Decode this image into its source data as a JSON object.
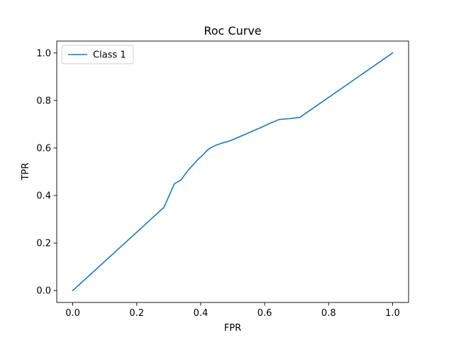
{
  "chart_data": {
    "type": "line",
    "title": "Roc Curve",
    "xlabel": "FPR",
    "ylabel": "TPR",
    "xlim": [
      -0.05,
      1.05
    ],
    "ylim": [
      -0.05,
      1.05
    ],
    "xticks": [
      0.0,
      0.2,
      0.4,
      0.6,
      0.8,
      1.0
    ],
    "yticks": [
      0.0,
      0.2,
      0.4,
      0.6,
      0.8,
      1.0
    ],
    "xtick_labels": [
      "0.0",
      "0.2",
      "0.4",
      "0.6",
      "0.8",
      "1.0"
    ],
    "ytick_labels": [
      "0.0",
      "0.2",
      "0.4",
      "0.6",
      "0.8",
      "1.0"
    ],
    "grid": false,
    "legend_position": "top-left",
    "series": [
      {
        "name": "Class 1",
        "color": "#1f77b4",
        "x": [
          0.0,
          0.285,
          0.318,
          0.338,
          0.36,
          0.39,
          0.41,
          0.42,
          0.43,
          0.45,
          0.47,
          0.485,
          0.5,
          0.54,
          0.57,
          0.59,
          0.61,
          0.645,
          0.68,
          0.71,
          1.0
        ],
        "y": [
          0.0,
          0.35,
          0.45,
          0.465,
          0.505,
          0.55,
          0.575,
          0.59,
          0.6,
          0.613,
          0.622,
          0.627,
          0.635,
          0.658,
          0.676,
          0.687,
          0.7,
          0.72,
          0.724,
          0.729,
          1.0
        ]
      }
    ]
  }
}
